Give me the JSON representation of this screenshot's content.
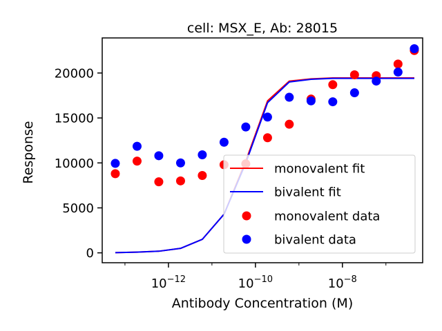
{
  "chart_data": {
    "type": "scatter",
    "title": "cell: MSX_E, Ab: 28015",
    "xlabel": "Antibody Concentration (M)",
    "ylabel": "Response",
    "xscale": "log",
    "xlim": [
      3e-14,
      7e-07
    ],
    "ylim": [
      -1100,
      23900
    ],
    "xticks": [
      {
        "value": 1e-12,
        "base": "10",
        "exp": "−12"
      },
      {
        "value": 1e-10,
        "base": "10",
        "exp": "−10"
      },
      {
        "value": 1e-08,
        "base": "10",
        "exp": "−8"
      }
    ],
    "yticks": [
      0,
      5000,
      10000,
      15000,
      20000
    ],
    "legend_position": "lower-right",
    "colors": {
      "monovalent": "#ff0000",
      "bivalent": "#0000ff"
    },
    "fits": [
      {
        "name": "monovalent fit",
        "color": "#ff0000",
        "x": [
          6e-14,
          1.9e-13,
          6e-13,
          1.9e-12,
          6e-12,
          1.9e-11,
          6e-11,
          1.9e-10,
          6e-10,
          1.9e-09,
          6e-09,
          1.9e-08,
          6e-08,
          1.9e-07,
          4.5e-07
        ],
        "values": [
          20,
          80,
          180,
          500,
          1500,
          4300,
          10200,
          16900,
          19100,
          19350,
          19450,
          19450,
          19450,
          19450,
          19450
        ]
      },
      {
        "name": "bivalent fit",
        "color": "#0000ff",
        "x": [
          6e-14,
          1.9e-13,
          6e-13,
          1.9e-12,
          6e-12,
          1.9e-11,
          6e-11,
          1.9e-10,
          6e-10,
          1.9e-09,
          6e-09,
          1.9e-08,
          6e-08,
          1.9e-07,
          4.5e-07
        ],
        "values": [
          20,
          80,
          180,
          500,
          1500,
          4300,
          10000,
          16700,
          19000,
          19300,
          19400,
          19400,
          19400,
          19400,
          19400
        ]
      }
    ],
    "series": [
      {
        "name": "monovalent data",
        "color": "#ff0000",
        "x": [
          6e-14,
          1.9e-13,
          6e-13,
          1.9e-12,
          6e-12,
          1.9e-11,
          6e-11,
          1.9e-10,
          6e-10,
          1.9e-09,
          6e-09,
          1.9e-08,
          6e-08,
          1.9e-07,
          4.5e-07
        ],
        "values": [
          8800,
          10200,
          7900,
          8000,
          8600,
          9800,
          9900,
          12800,
          14300,
          17100,
          18700,
          19800,
          19700,
          21000,
          22500
        ]
      },
      {
        "name": "bivalent data",
        "color": "#0000ff",
        "x": [
          6e-14,
          1.9e-13,
          6e-13,
          1.9e-12,
          6e-12,
          1.9e-11,
          6e-11,
          1.9e-10,
          6e-10,
          1.9e-09,
          6e-09,
          1.9e-08,
          6e-08,
          1.9e-07,
          4.5e-07
        ],
        "values": [
          9950,
          11850,
          10800,
          10000,
          10900,
          12300,
          14000,
          15100,
          17300,
          16900,
          16800,
          17800,
          19100,
          20100,
          22700
        ]
      }
    ],
    "legend": [
      {
        "label": "monovalent fit",
        "kind": "line",
        "color": "#ff0000"
      },
      {
        "label": "bivalent fit",
        "kind": "line",
        "color": "#0000ff"
      },
      {
        "label": "monovalent data",
        "kind": "marker",
        "color": "#ff0000"
      },
      {
        "label": "bivalent data",
        "kind": "marker",
        "color": "#0000ff"
      }
    ]
  }
}
